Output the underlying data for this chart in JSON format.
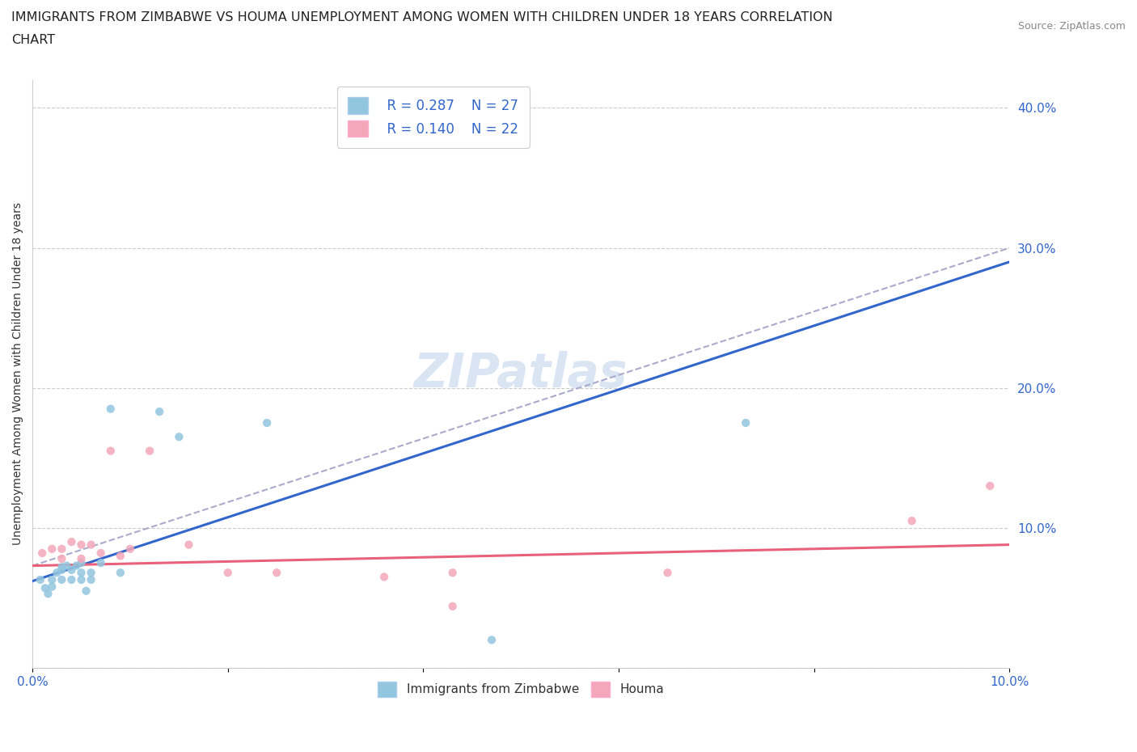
{
  "title_line1": "IMMIGRANTS FROM ZIMBABWE VS HOUMA UNEMPLOYMENT AMONG WOMEN WITH CHILDREN UNDER 18 YEARS CORRELATION",
  "title_line2": "CHART",
  "source": "Source: ZipAtlas.com",
  "ylabel": "Unemployment Among Women with Children Under 18 years",
  "xlim": [
    0.0,
    0.1
  ],
  "ylim": [
    0.0,
    0.42
  ],
  "ytick_vals": [
    0.0,
    0.1,
    0.2,
    0.3,
    0.4
  ],
  "ytick_labels": [
    "",
    "10.0%",
    "20.0%",
    "30.0%",
    "40.0%"
  ],
  "xtick_vals": [
    0.0,
    0.02,
    0.04,
    0.06,
    0.08,
    0.1
  ],
  "xtick_labels": [
    "0.0%",
    "",
    "",
    "",
    "",
    "10.0%"
  ],
  "grid_color": "#cccccc",
  "watermark": "ZIPatlas",
  "legend_R1": "R = 0.287",
  "legend_N1": "N = 27",
  "legend_R2": "R = 0.140",
  "legend_N2": "N = 22",
  "blue_color": "#92c5de",
  "pink_color": "#f4a7b9",
  "trend_blue_color": "#3366cc",
  "trend_pink_color": "#e8607a",
  "trend_gray_color": "#aaaacc",
  "scatter_blue_x": [
    0.0008,
    0.0013,
    0.0016,
    0.002,
    0.002,
    0.0025,
    0.003,
    0.003,
    0.003,
    0.0035,
    0.004,
    0.004,
    0.0045,
    0.005,
    0.005,
    0.005,
    0.0055,
    0.006,
    0.006,
    0.007,
    0.008,
    0.009,
    0.013,
    0.015,
    0.024,
    0.047,
    0.073
  ],
  "scatter_blue_y": [
    0.063,
    0.057,
    0.053,
    0.063,
    0.058,
    0.068,
    0.063,
    0.07,
    0.072,
    0.073,
    0.063,
    0.07,
    0.073,
    0.063,
    0.068,
    0.075,
    0.055,
    0.063,
    0.068,
    0.075,
    0.185,
    0.068,
    0.183,
    0.165,
    0.175,
    0.02,
    0.175
  ],
  "scatter_pink_x": [
    0.001,
    0.002,
    0.003,
    0.003,
    0.004,
    0.005,
    0.005,
    0.006,
    0.007,
    0.008,
    0.009,
    0.01,
    0.012,
    0.016,
    0.02,
    0.025,
    0.036,
    0.043,
    0.043,
    0.065,
    0.09,
    0.098
  ],
  "scatter_pink_y": [
    0.082,
    0.085,
    0.078,
    0.085,
    0.09,
    0.078,
    0.088,
    0.088,
    0.082,
    0.155,
    0.08,
    0.085,
    0.155,
    0.088,
    0.068,
    0.068,
    0.065,
    0.068,
    0.044,
    0.068,
    0.105,
    0.13
  ],
  "blue_trend_x0": 0.0,
  "blue_trend_y0": 0.062,
  "blue_trend_x1": 0.1,
  "blue_trend_y1": 0.29,
  "pink_trend_x0": 0.0,
  "pink_trend_y0": 0.073,
  "pink_trend_x1": 0.1,
  "pink_trend_y1": 0.088,
  "gray_trend_x0": 0.0,
  "gray_trend_y0": 0.073,
  "gray_trend_x1": 0.1,
  "gray_trend_y1": 0.3,
  "figsize": [
    14.06,
    9.3
  ],
  "dpi": 100
}
